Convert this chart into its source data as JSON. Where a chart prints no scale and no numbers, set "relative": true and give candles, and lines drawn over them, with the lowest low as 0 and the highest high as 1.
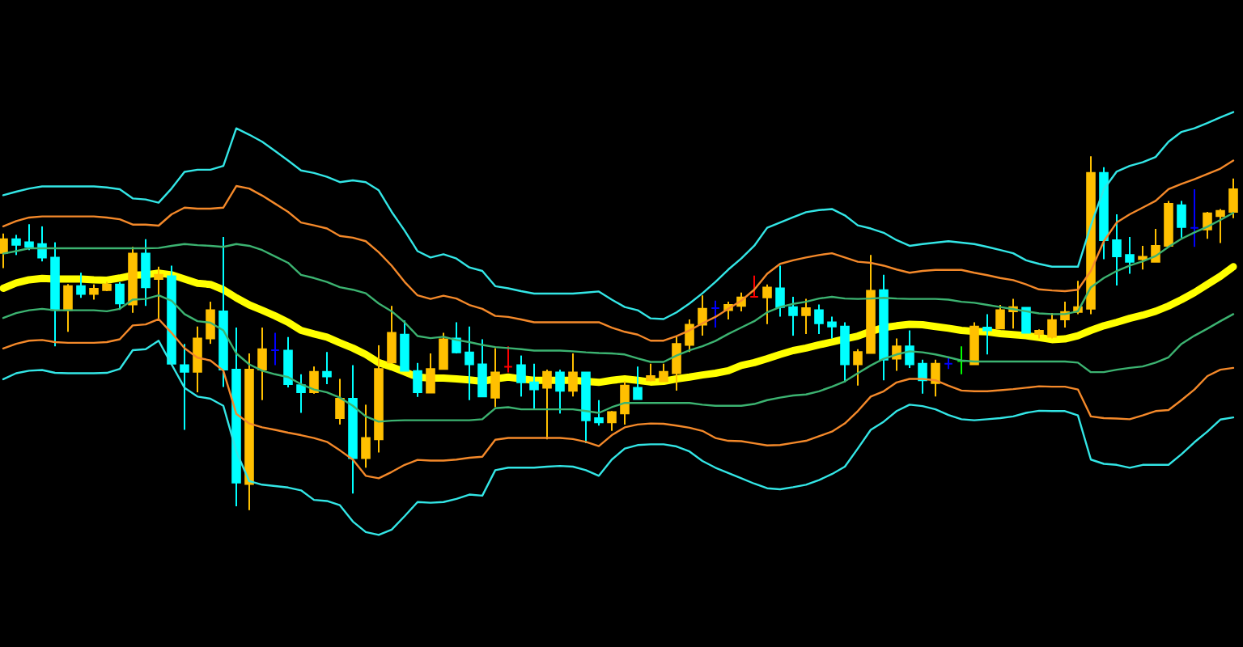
{
  "chart_data": {
    "type": "candlestick",
    "relative": true,
    "categories": [
      null,
      null,
      null,
      null,
      null,
      null,
      null,
      null,
      null,
      null,
      null,
      null,
      null,
      null,
      null,
      null,
      null,
      null,
      null,
      null,
      null,
      null,
      null,
      null,
      null,
      null,
      null,
      null,
      null,
      null,
      null,
      null,
      null,
      null,
      null,
      null,
      null,
      null,
      null,
      null,
      null,
      null,
      null,
      null,
      null,
      null,
      null,
      null,
      null,
      null,
      null,
      null,
      null,
      null,
      null,
      null,
      null,
      null,
      null,
      null,
      null,
      null,
      null,
      null,
      null,
      null,
      null,
      null,
      null,
      null,
      null,
      null,
      null,
      null,
      null,
      null,
      null,
      null,
      null,
      null,
      null,
      null,
      null,
      null,
      null,
      null,
      null,
      null,
      null,
      null,
      null,
      null,
      null,
      null,
      null,
      null
    ],
    "ohlc": [
      [
        0.727,
        0.782,
        0.684,
        0.766
      ],
      [
        0.766,
        0.778,
        0.721,
        0.75
      ],
      [
        0.757,
        0.808,
        0.735,
        0.744
      ],
      [
        0.752,
        0.802,
        0.703,
        0.714
      ],
      [
        0.714,
        0.757,
        0.463,
        0.566
      ],
      [
        0.565,
        0.639,
        0.504,
        0.633
      ],
      [
        0.633,
        0.671,
        0.6,
        0.611
      ],
      [
        0.611,
        0.638,
        0.595,
        0.626
      ],
      [
        0.622,
        0.645,
        0.619,
        0.638
      ],
      [
        0.638,
        0.644,
        0.566,
        0.584
      ],
      [
        0.581,
        0.744,
        0.558,
        0.725
      ],
      [
        0.725,
        0.766,
        0.577,
        0.63
      ],
      [
        0.653,
        0.688,
        0.539,
        0.665
      ],
      [
        0.661,
        0.691,
        0.41,
        0.414
      ],
      [
        0.41,
        0.47,
        0.227,
        0.391
      ],
      [
        0.391,
        0.519,
        0.333,
        0.485
      ],
      [
        0.485,
        0.589,
        0.47,
        0.565
      ],
      [
        0.562,
        0.772,
        0.348,
        0.397
      ],
      [
        0.397,
        0.516,
        0.011,
        0.078
      ],
      [
        0.074,
        0.443,
        0,
        0.397
      ],
      [
        0.397,
        0.516,
        0.311,
        0.455
      ],
      [
        0.452,
        0.501,
        0.41,
        0.452
      ],
      [
        0.451,
        0.489,
        0.347,
        0.356
      ],
      [
        0.353,
        0.384,
        0.275,
        0.333
      ],
      [
        0.333,
        0.406,
        0.329,
        0.391
      ],
      [
        0.391,
        0.447,
        0.356,
        0.378
      ],
      [
        0.26,
        0.371,
        0.242,
        0.315
      ],
      [
        0.315,
        0.41,
        0.047,
        0.147
      ],
      [
        0.147,
        0.298,
        0.12,
        0.204
      ],
      [
        0.2,
        0.466,
        0.163,
        0.399
      ],
      [
        0.417,
        0.577,
        0.416,
        0.501
      ],
      [
        0.496,
        0.536,
        0.393,
        0.394
      ],
      [
        0.393,
        0.416,
        0.32,
        0.333
      ],
      [
        0.332,
        0.443,
        0.332,
        0.399
      ],
      [
        0.399,
        0.501,
        0.399,
        0.483
      ],
      [
        0.485,
        0.531,
        0.443,
        0.446
      ],
      [
        0.446,
        0.519,
        0.311,
        0.412
      ],
      [
        0.412,
        0.483,
        0.32,
        0.321
      ],
      [
        0.318,
        0.458,
        0.291,
        0.389
      ],
      [
        0.405,
        0.463,
        0.389,
        0.405
      ],
      [
        0.41,
        0.437,
        0.321,
        0.361
      ],
      [
        0.361,
        0.414,
        0.283,
        0.341
      ],
      [
        0.346,
        0.397,
        0.2,
        0.391
      ],
      [
        0.389,
        0.397,
        0.273,
        0.337
      ],
      [
        0.337,
        0.443,
        0.321,
        0.389
      ],
      [
        0.389,
        0.389,
        0.189,
        0.254
      ],
      [
        0.26,
        0.311,
        0.239,
        0.248
      ],
      [
        0.248,
        0.28,
        0.224,
        0.277
      ],
      [
        0.273,
        0.364,
        0.242,
        0.352
      ],
      [
        0.346,
        0.406,
        0.314,
        0.314
      ],
      [
        0.367,
        0.414,
        0.364,
        0.379
      ],
      [
        0.364,
        0.414,
        0.364,
        0.391
      ],
      [
        0.387,
        0.493,
        0.338,
        0.47
      ],
      [
        0.467,
        0.539,
        0.447,
        0.524
      ],
      [
        0.524,
        0.607,
        0.493,
        0.569
      ],
      [
        0.571,
        0.592,
        0.516,
        0.571
      ],
      [
        0.565,
        0.589,
        0.539,
        0.58
      ],
      [
        0.577,
        0.615,
        0.562,
        0.601
      ],
      [
        0.603,
        0.663,
        0.603,
        0.603
      ],
      [
        0.601,
        0.638,
        0.526,
        0.629
      ],
      [
        0.627,
        0.691,
        0.547,
        0.574
      ],
      [
        0.574,
        0.603,
        0.493,
        0.551
      ],
      [
        0.551,
        0.597,
        0.498,
        0.571
      ],
      [
        0.565,
        0.581,
        0.498,
        0.528
      ],
      [
        0.531,
        0.547,
        0.485,
        0.519
      ],
      [
        0.519,
        0.531,
        0.361,
        0.412
      ],
      [
        0.412,
        0.455,
        0.352,
        0.447
      ],
      [
        0.444,
        0.721,
        0.444,
        0.62
      ],
      [
        0.622,
        0.665,
        0.367,
        0.425
      ],
      [
        0.428,
        0.485,
        0.394,
        0.463
      ],
      [
        0.463,
        0.508,
        0.402,
        0.412
      ],
      [
        0.414,
        0.425,
        0.329,
        0.367
      ],
      [
        0.359,
        0.425,
        0.321,
        0.414
      ],
      [
        0.414,
        0.429,
        0.399,
        0.414
      ],
      [
        0.421,
        0.463,
        0.384,
        0.421
      ],
      [
        0.412,
        0.531,
        0.412,
        0.519
      ],
      [
        0.516,
        0.554,
        0.44,
        0.508
      ],
      [
        0.513,
        0.58,
        0.513,
        0.565
      ],
      [
        0.562,
        0.597,
        0.513,
        0.574
      ],
      [
        0.572,
        0.572,
        0.501,
        0.501
      ],
      [
        0.498,
        0.511,
        0.485,
        0.507
      ],
      [
        0.49,
        0.557,
        0.485,
        0.537
      ],
      [
        0.539,
        0.589,
        0.516,
        0.56
      ],
      [
        0.56,
        0.648,
        0.554,
        0.574
      ],
      [
        0.569,
        1,
        0.554,
        0.953
      ],
      [
        0.953,
        0.969,
        0.709,
        0.763
      ],
      [
        0.763,
        0.836,
        0.635,
        0.717
      ],
      [
        0.721,
        0.772,
        0.668,
        0.702
      ],
      [
        0.709,
        0.747,
        0.68,
        0.716
      ],
      [
        0.702,
        0.795,
        0.702,
        0.747
      ],
      [
        0.747,
        0.874,
        0.747,
        0.866
      ],
      [
        0.862,
        0.874,
        0.77,
        0.8
      ],
      [
        0.798,
        0.907,
        0.744,
        0.798
      ],
      [
        0.793,
        0.843,
        0.767,
        0.839
      ],
      [
        0.831,
        0.851,
        0.755,
        0.846
      ],
      [
        0.843,
        0.937,
        0.825,
        0.907
      ]
    ],
    "colors": [
      "#ffc000",
      "#00ffff",
      "#00ffff",
      "#00ffff",
      "#00ffff",
      "#ffc000",
      "#00ffff",
      "#ffc000",
      "#ffc000",
      "#00ffff",
      "#ffc000",
      "#00ffff",
      "#ffc000",
      "#00ffff",
      "#00ffff",
      "#ffc000",
      "#ffc000",
      "#00ffff",
      "#00ffff",
      "#ffc000",
      "#ffc000",
      "#0000ff",
      "#00ffff",
      "#00ffff",
      "#ffc000",
      "#00ffff",
      "#ffc000",
      "#00ffff",
      "#ffc000",
      "#ffc000",
      "#ffc000",
      "#00ffff",
      "#00ffff",
      "#ffc000",
      "#ffc000",
      "#00ffff",
      "#00ffff",
      "#00ffff",
      "#ffc000",
      "#ff0000",
      "#00ffff",
      "#00ffff",
      "#ffc000",
      "#00ffff",
      "#ffc000",
      "#00ffff",
      "#00ffff",
      "#ffc000",
      "#ffc000",
      "#00ffff",
      "#ffc000",
      "#ffc000",
      "#ffc000",
      "#ffc000",
      "#ffc000",
      "#0000ff",
      "#ffc000",
      "#ffc000",
      "#ff0000",
      "#ffc000",
      "#00ffff",
      "#00ffff",
      "#ffc000",
      "#00ffff",
      "#00ffff",
      "#00ffff",
      "#ffc000",
      "#ffc000",
      "#00ffff",
      "#ffc000",
      "#00ffff",
      "#00ffff",
      "#ffc000",
      "#0000ff",
      "#00ff00",
      "#ffc000",
      "#00ffff",
      "#ffc000",
      "#ffc000",
      "#00ffff",
      "#ffc000",
      "#ffc000",
      "#ffc000",
      "#ffc000",
      "#ffc000",
      "#00ffff",
      "#00ffff",
      "#00ffff",
      "#ffc000",
      "#ffc000",
      "#ffc000",
      "#00ffff",
      "#0000ff",
      "#ffc000",
      "#ffc000",
      "#ffc000"
    ],
    "series": [
      {
        "type": "line",
        "color": "#33e6e6",
        "values": [
          0.89,
          0.9,
          0.909,
          0.915,
          0.915,
          0.915,
          0.915,
          0.915,
          0.912,
          0.907,
          0.881,
          0.878,
          0.869,
          0.909,
          0.956,
          0.962,
          0.962,
          0.973,
          1.079,
          1.061,
          1.041,
          1.015,
          0.988,
          0.96,
          0.953,
          0.942,
          0.927,
          0.932,
          0.927,
          0.904,
          0.843,
          0.79,
          0.732,
          0.714,
          0.723,
          0.711,
          0.686,
          0.676,
          0.633,
          0.627,
          0.619,
          0.612,
          0.612,
          0.612,
          0.612,
          0.615,
          0.618,
          0.595,
          0.574,
          0.565,
          0.542,
          0.54,
          0.559,
          0.584,
          0.613,
          0.645,
          0.68,
          0.711,
          0.747,
          0.798,
          0.813,
          0.828,
          0.842,
          0.848,
          0.851,
          0.833,
          0.805,
          0.796,
          0.784,
          0.763,
          0.747,
          0.752,
          0.756,
          0.76,
          0.756,
          0.752,
          0.744,
          0.735,
          0.726,
          0.706,
          0.696,
          0.688,
          0.688,
          0.688,
          0.805,
          0.907,
          0.957,
          0.973,
          0.983,
          0.998,
          1.041,
          1.069,
          1.079,
          1.094,
          1.11,
          1.125
        ]
      },
      {
        "type": "line",
        "color": "#f4892a",
        "values": [
          0.802,
          0.817,
          0.827,
          0.83,
          0.83,
          0.83,
          0.83,
          0.83,
          0.827,
          0.822,
          0.807,
          0.807,
          0.804,
          0.836,
          0.855,
          0.852,
          0.852,
          0.855,
          0.916,
          0.909,
          0.889,
          0.866,
          0.843,
          0.813,
          0.805,
          0.796,
          0.775,
          0.77,
          0.76,
          0.729,
          0.691,
          0.645,
          0.607,
          0.597,
          0.606,
          0.598,
          0.58,
          0.569,
          0.549,
          0.546,
          0.539,
          0.531,
          0.531,
          0.531,
          0.531,
          0.531,
          0.531,
          0.516,
          0.504,
          0.496,
          0.479,
          0.479,
          0.492,
          0.508,
          0.528,
          0.546,
          0.569,
          0.592,
          0.623,
          0.668,
          0.696,
          0.706,
          0.714,
          0.721,
          0.726,
          0.714,
          0.702,
          0.699,
          0.691,
          0.68,
          0.671,
          0.676,
          0.679,
          0.679,
          0.679,
          0.671,
          0.664,
          0.656,
          0.65,
          0.638,
          0.624,
          0.621,
          0.619,
          0.623,
          0.676,
          0.76,
          0.813,
          0.836,
          0.855,
          0.874,
          0.907,
          0.922,
          0.935,
          0.95,
          0.965,
          0.988
        ]
      },
      {
        "type": "line",
        "color": "#3cb371",
        "values": [
          0.725,
          0.732,
          0.74,
          0.74,
          0.74,
          0.74,
          0.74,
          0.74,
          0.74,
          0.74,
          0.74,
          0.74,
          0.741,
          0.747,
          0.752,
          0.749,
          0.747,
          0.744,
          0.752,
          0.747,
          0.735,
          0.717,
          0.699,
          0.665,
          0.656,
          0.645,
          0.63,
          0.623,
          0.613,
          0.584,
          0.562,
          0.531,
          0.492,
          0.486,
          0.49,
          0.481,
          0.475,
          0.467,
          0.461,
          0.458,
          0.455,
          0.451,
          0.451,
          0.451,
          0.449,
          0.446,
          0.444,
          0.443,
          0.44,
          0.429,
          0.419,
          0.419,
          0.437,
          0.452,
          0.463,
          0.478,
          0.498,
          0.516,
          0.534,
          0.559,
          0.574,
          0.583,
          0.589,
          0.598,
          0.603,
          0.598,
          0.597,
          0.598,
          0.6,
          0.598,
          0.597,
          0.597,
          0.597,
          0.595,
          0.589,
          0.586,
          0.58,
          0.574,
          0.568,
          0.562,
          0.556,
          0.554,
          0.554,
          0.562,
          0.63,
          0.656,
          0.676,
          0.691,
          0.703,
          0.718,
          0.744,
          0.767,
          0.785,
          0.801,
          0.82,
          0.84
        ]
      },
      {
        "type": "line",
        "color": "#ffff00",
        "values": [
          0.627,
          0.642,
          0.651,
          0.655,
          0.653,
          0.653,
          0.653,
          0.651,
          0.65,
          0.656,
          0.664,
          0.665,
          0.67,
          0.665,
          0.653,
          0.641,
          0.638,
          0.623,
          0.6,
          0.58,
          0.565,
          0.549,
          0.531,
          0.508,
          0.498,
          0.489,
          0.473,
          0.458,
          0.44,
          0.417,
          0.405,
          0.391,
          0.376,
          0.373,
          0.373,
          0.371,
          0.368,
          0.364,
          0.371,
          0.376,
          0.371,
          0.367,
          0.367,
          0.367,
          0.367,
          0.364,
          0.361,
          0.367,
          0.371,
          0.367,
          0.362,
          0.364,
          0.371,
          0.376,
          0.382,
          0.387,
          0.394,
          0.409,
          0.417,
          0.428,
          0.44,
          0.451,
          0.458,
          0.467,
          0.475,
          0.484,
          0.492,
          0.505,
          0.516,
          0.521,
          0.525,
          0.524,
          0.519,
          0.514,
          0.508,
          0.505,
          0.504,
          0.499,
          0.496,
          0.493,
          0.488,
          0.482,
          0.484,
          0.493,
          0.508,
          0.521,
          0.531,
          0.542,
          0.551,
          0.562,
          0.577,
          0.595,
          0.615,
          0.638,
          0.661,
          0.688
        ]
      },
      {
        "type": "line",
        "color": "#3cb371",
        "values": [
          0.543,
          0.557,
          0.565,
          0.569,
          0.565,
          0.565,
          0.565,
          0.565,
          0.562,
          0.569,
          0.595,
          0.597,
          0.607,
          0.592,
          0.554,
          0.534,
          0.53,
          0.508,
          0.443,
          0.412,
          0.394,
          0.384,
          0.376,
          0.356,
          0.341,
          0.333,
          0.318,
          0.295,
          0.265,
          0.25,
          0.253,
          0.254,
          0.254,
          0.254,
          0.254,
          0.254,
          0.254,
          0.257,
          0.288,
          0.291,
          0.285,
          0.285,
          0.285,
          0.285,
          0.285,
          0.28,
          0.275,
          0.291,
          0.303,
          0.303,
          0.303,
          0.303,
          0.303,
          0.303,
          0.298,
          0.295,
          0.295,
          0.295,
          0.3,
          0.311,
          0.318,
          0.324,
          0.327,
          0.336,
          0.349,
          0.364,
          0.387,
          0.409,
          0.428,
          0.44,
          0.449,
          0.446,
          0.44,
          0.432,
          0.423,
          0.42,
          0.42,
          0.42,
          0.42,
          0.42,
          0.42,
          0.42,
          0.42,
          0.417,
          0.39,
          0.39,
          0.397,
          0.402,
          0.406,
          0.417,
          0.432,
          0.47,
          0.493,
          0.513,
          0.534,
          0.554
        ]
      },
      {
        "type": "line",
        "color": "#f4892a",
        "values": [
          0.457,
          0.47,
          0.479,
          0.481,
          0.475,
          0.473,
          0.473,
          0.473,
          0.475,
          0.483,
          0.522,
          0.525,
          0.54,
          0.501,
          0.458,
          0.431,
          0.423,
          0.394,
          0.272,
          0.245,
          0.234,
          0.227,
          0.219,
          0.212,
          0.204,
          0.193,
          0.169,
          0.143,
          0.097,
          0.09,
          0.108,
          0.128,
          0.142,
          0.14,
          0.14,
          0.143,
          0.148,
          0.151,
          0.199,
          0.204,
          0.204,
          0.204,
          0.204,
          0.204,
          0.201,
          0.193,
          0.181,
          0.212,
          0.234,
          0.242,
          0.245,
          0.244,
          0.239,
          0.233,
          0.224,
          0.204,
          0.196,
          0.195,
          0.189,
          0.183,
          0.184,
          0.19,
          0.196,
          0.209,
          0.222,
          0.245,
          0.28,
          0.321,
          0.336,
          0.361,
          0.371,
          0.371,
          0.367,
          0.352,
          0.338,
          0.336,
          0.336,
          0.339,
          0.342,
          0.346,
          0.35,
          0.349,
          0.349,
          0.341,
          0.265,
          0.26,
          0.259,
          0.257,
          0.268,
          0.28,
          0.283,
          0.311,
          0.341,
          0.379,
          0.397,
          0.402
        ]
      },
      {
        "type": "line",
        "color": "#33e6e6",
        "values": [
          0.37,
          0.387,
          0.394,
          0.396,
          0.388,
          0.387,
          0.387,
          0.387,
          0.388,
          0.399,
          0.452,
          0.455,
          0.479,
          0.412,
          0.346,
          0.321,
          0.315,
          0.295,
          0.166,
          0.082,
          0.072,
          0.068,
          0.064,
          0.056,
          0.029,
          0.026,
          0.014,
          -0.032,
          -0.062,
          -0.07,
          -0.055,
          -0.017,
          0.023,
          0.021,
          0.023,
          0.032,
          0.044,
          0.041,
          0.113,
          0.12,
          0.12,
          0.12,
          0.123,
          0.125,
          0.123,
          0.113,
          0.097,
          0.143,
          0.174,
          0.184,
          0.186,
          0.186,
          0.18,
          0.166,
          0.139,
          0.12,
          0.105,
          0.09,
          0.075,
          0.062,
          0.059,
          0.065,
          0.072,
          0.085,
          0.102,
          0.123,
          0.174,
          0.227,
          0.25,
          0.28,
          0.298,
          0.294,
          0.285,
          0.269,
          0.257,
          0.254,
          0.257,
          0.26,
          0.265,
          0.275,
          0.281,
          0.28,
          0.28,
          0.268,
          0.143,
          0.131,
          0.128,
          0.12,
          0.128,
          0.128,
          0.128,
          0.158,
          0.192,
          0.222,
          0.256,
          0.262
        ]
      }
    ]
  }
}
